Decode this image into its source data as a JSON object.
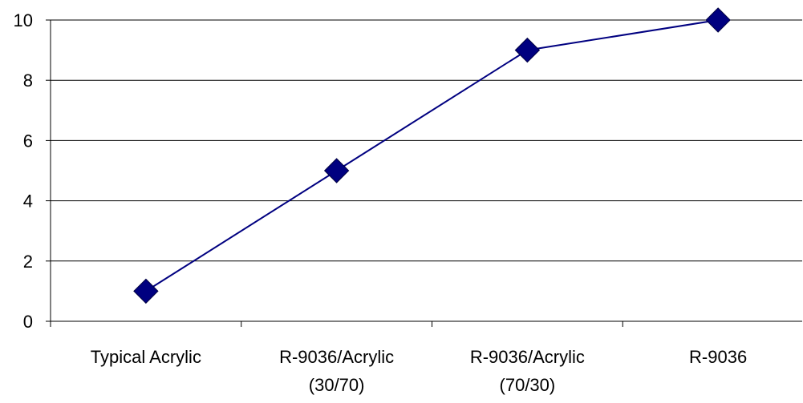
{
  "chart_data": {
    "type": "line",
    "categories": [
      [
        "Typical Acrylic"
      ],
      [
        "R-9036/Acrylic",
        "(30/70)"
      ],
      [
        "R-9036/Acrylic",
        "(70/30)"
      ],
      [
        "R-9036"
      ]
    ],
    "series": [
      {
        "values": [
          1,
          5,
          9,
          10
        ]
      }
    ],
    "ylim": [
      0,
      10
    ],
    "yticks": [
      "0",
      "2",
      "4",
      "6",
      "8",
      "10"
    ],
    "grid": true,
    "legend": "none",
    "colors": {
      "line": "#000080",
      "marker": "#000080",
      "grid": "#000000",
      "axis": "#000000"
    },
    "marker": "diamond"
  }
}
